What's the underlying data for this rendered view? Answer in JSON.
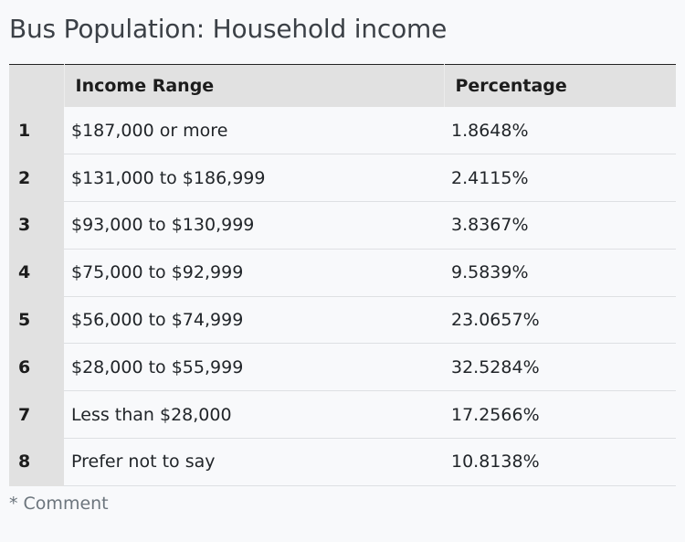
{
  "page": {
    "title": "Bus Population: Household income",
    "comment": "* Comment"
  },
  "table": {
    "headers": [
      "",
      "Income Range",
      "Percentage"
    ],
    "rows": [
      {
        "index": "1",
        "range": "$187,000 or more",
        "percentage": "1.8648%"
      },
      {
        "index": "2",
        "range": "$131,000 to $186,999",
        "percentage": "2.4115%"
      },
      {
        "index": "3",
        "range": "$93,000 to $130,999",
        "percentage": "3.8367%"
      },
      {
        "index": "4",
        "range": "$75,000 to $92,999",
        "percentage": "9.5839%"
      },
      {
        "index": "5",
        "range": "$56,000 to $74,999",
        "percentage": "23.0657%"
      },
      {
        "index": "6",
        "range": "$28,000 to $55,999",
        "percentage": "32.5284%"
      },
      {
        "index": "7",
        "range": "Less than $28,000",
        "percentage": "17.2566%"
      },
      {
        "index": "8",
        "range": "Prefer not to say",
        "percentage": "10.8138%"
      }
    ]
  }
}
